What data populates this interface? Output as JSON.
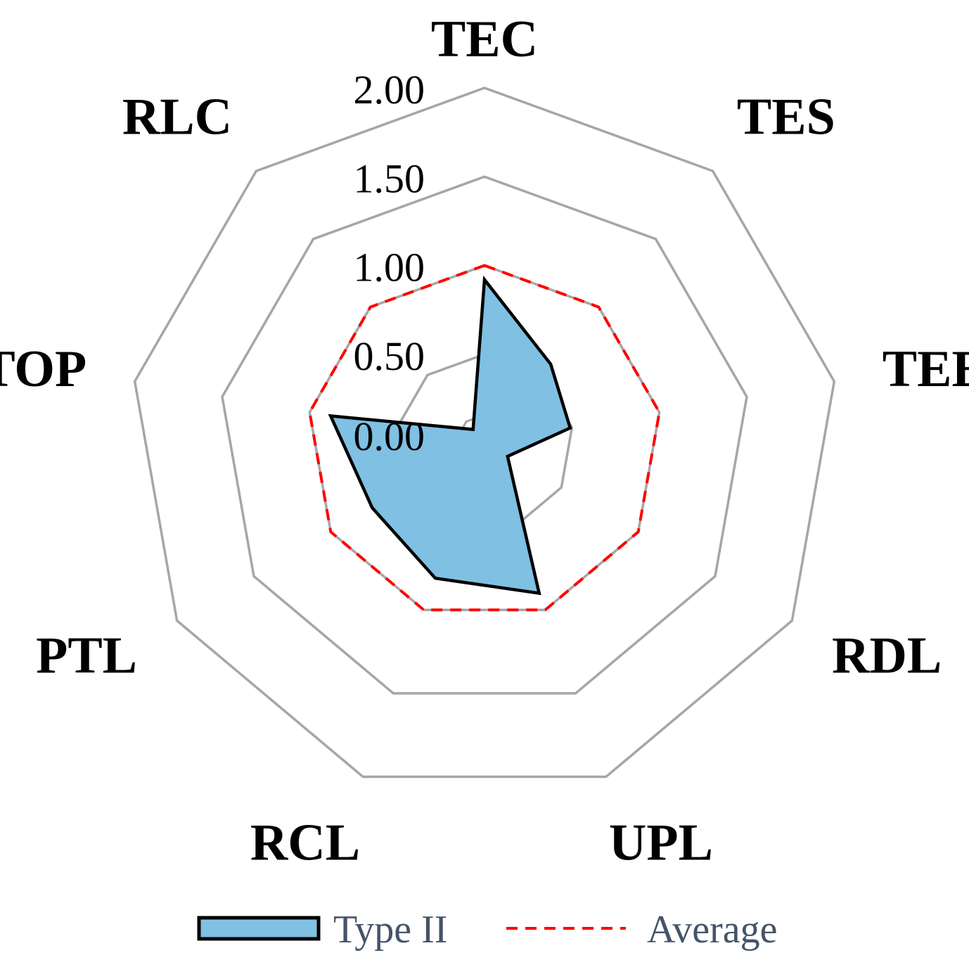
{
  "chart_data": {
    "type": "radar",
    "axes": [
      "TEC",
      "TES",
      "TEE",
      "RDL",
      "UPL",
      "RCL",
      "PTL",
      "TOP",
      "RLC"
    ],
    "ticks": [
      "0.00",
      "0.50",
      "1.00",
      "1.50",
      "2.00"
    ],
    "range": [
      0,
      2
    ],
    "grid": true,
    "legend_position": "bottom",
    "series": [
      {
        "name": "Type II",
        "values": [
          0.92,
          0.58,
          0.49,
          0.15,
          0.9,
          0.81,
          0.73,
          0.88,
          0.1
        ],
        "fill": "#7fc0e3",
        "stroke": "#000000"
      },
      {
        "name": "Average",
        "values": [
          1.0,
          1.0,
          1.0,
          1.0,
          1.0,
          1.0,
          1.0,
          1.0,
          1.0
        ],
        "stroke": "#ff0000",
        "dashed": true
      }
    ],
    "grid_color": "#a6a6a6"
  }
}
